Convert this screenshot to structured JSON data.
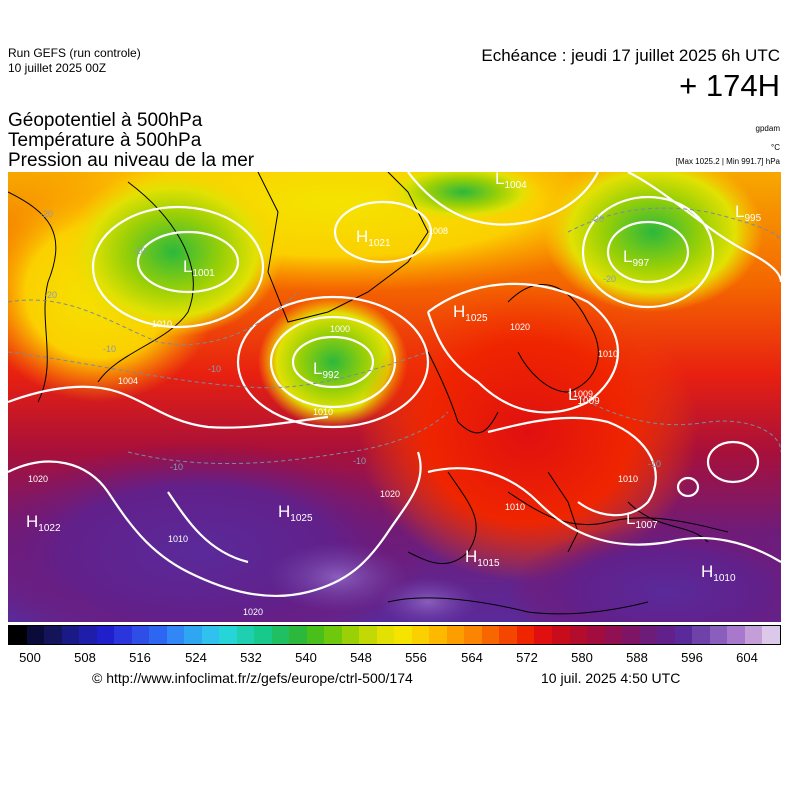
{
  "header": {
    "run_line1": "Run GEFS (run controle)",
    "run_line2": "10 juillet 2025 00Z",
    "echeance": "Echéance : jeudi 17 juillet 2025 6h UTC",
    "lead": "+ 174H"
  },
  "titles": {
    "line1": "Géopotentiel à 500hPa",
    "line2": "Température à 500hPa",
    "line3": "Pression au niveau de la mer"
  },
  "units": {
    "gpdam": "gpdam",
    "celsius": "°C",
    "maxmin": "[Max 1025.2 | Min 991.7] hPa"
  },
  "pressure_centers": [
    {
      "type": "L",
      "value": "1001"
    },
    {
      "type": "H",
      "value": "1021"
    },
    {
      "type": "L",
      "value": "1004"
    },
    {
      "type": "L",
      "value": "997"
    },
    {
      "type": "L",
      "value": "995"
    },
    {
      "type": "H",
      "value": "1025"
    },
    {
      "type": "L",
      "value": "992"
    },
    {
      "type": "L",
      "value": "1009"
    },
    {
      "type": "H",
      "value": "1022"
    },
    {
      "type": "H",
      "value": "1025"
    },
    {
      "type": "L",
      "value": "1007"
    },
    {
      "type": "H",
      "value": "1015"
    },
    {
      "type": "H",
      "value": "1010"
    }
  ],
  "isobar_labels": [
    "1008",
    "1010",
    "1020",
    "1004",
    "1009",
    "1000",
    "1010",
    "1020",
    "1010",
    "1020",
    "1020",
    "1010",
    "1010",
    "1010"
  ],
  "isotherm_labels": [
    "-20",
    "-20",
    "-20",
    "-10",
    "-10",
    "-10",
    "-20",
    "-20",
    "-10",
    "-10"
  ],
  "color_scale": {
    "ticks": [
      "500",
      "508",
      "516",
      "524",
      "532",
      "540",
      "548",
      "556",
      "564",
      "572",
      "580",
      "588",
      "596",
      "604"
    ],
    "colors": [
      "#000000",
      "#0b0b3b",
      "#14145a",
      "#1a1a86",
      "#1e1eaa",
      "#1f1fcc",
      "#2a35dd",
      "#2f4ee8",
      "#2d66f0",
      "#3286f5",
      "#2fa6f2",
      "#30c1ee",
      "#26d5d8",
      "#1ed0b0",
      "#18c98c",
      "#20c062",
      "#2cb83c",
      "#49c019",
      "#70c80c",
      "#9ad006",
      "#c3d905",
      "#e2e103",
      "#f4e400",
      "#fbd000",
      "#fdb800",
      "#fd9e00",
      "#fb8400",
      "#f86600",
      "#f44600",
      "#ef2500",
      "#e01010",
      "#c80c1c",
      "#b40c2c",
      "#a20c3e",
      "#911052",
      "#7e1466",
      "#6e1c7a",
      "#62208a",
      "#5a2a9a",
      "#6e42a8",
      "#8a5ebc",
      "#a878cc",
      "#c49ed8",
      "#dcc8e8"
    ]
  },
  "footer": {
    "url": "© http://www.infoclimat.fr/z/gefs/europe/ctrl-500/174",
    "issued": "10 juil. 2025  4:50 UTC"
  }
}
